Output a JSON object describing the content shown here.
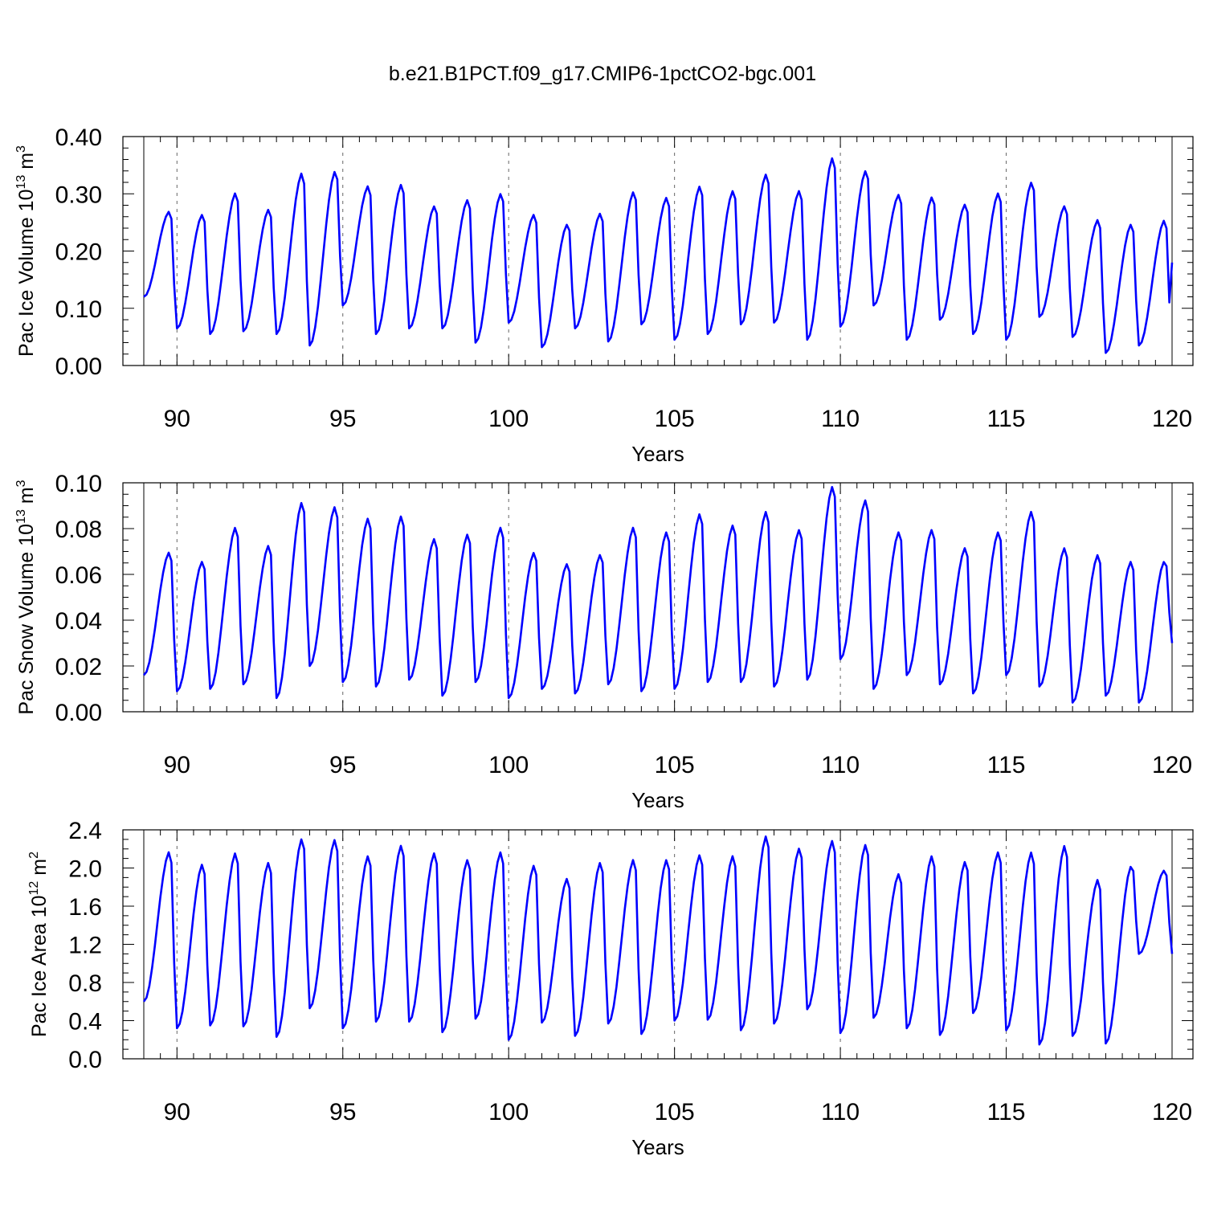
{
  "title": "b.e21.B1PCT.f09_g17.CMIP6-1pctCO2-bgc.001",
  "colors": {
    "series": "#0000ff",
    "axis": "#000000",
    "vline": "#666666"
  },
  "chart_data": [
    {
      "type": "line",
      "name": "pac-ice-volume",
      "ylabel": {
        "text": "Pac Ice Volume 10",
        "sup": "13",
        "unit": " m",
        "unit_sup": "3"
      },
      "xlabel": "Years",
      "xlim": [
        89,
        120
      ],
      "ylim": [
        0.0,
        0.4
      ],
      "xticks": [
        90,
        95,
        100,
        105,
        110,
        115,
        120
      ],
      "yticks": [
        0.0,
        0.1,
        0.2,
        0.3,
        0.4
      ],
      "ytick_labels": [
        "0.00",
        "0.10",
        "0.20",
        "0.30",
        "0.40"
      ],
      "ytick_minor": 0.02,
      "x_minor": 0.5,
      "vlines": [
        90,
        95,
        100,
        105,
        110,
        115
      ],
      "grid": false,
      "start_year": 89,
      "samples_per_year": 12,
      "peak_values": [
        0.27,
        0.265,
        0.303,
        0.274,
        0.338,
        0.341,
        0.315,
        0.318,
        0.28,
        0.291,
        0.302,
        0.265,
        0.248,
        0.267,
        0.305,
        0.295,
        0.315,
        0.307,
        0.336,
        0.307,
        0.365,
        0.342,
        0.3,
        0.296,
        0.283,
        0.303,
        0.322,
        0.28,
        0.256,
        0.248,
        0.255
      ],
      "trough_values": [
        0.12,
        0.065,
        0.055,
        0.06,
        0.055,
        0.035,
        0.105,
        0.055,
        0.065,
        0.065,
        0.04,
        0.075,
        0.032,
        0.065,
        0.042,
        0.072,
        0.045,
        0.055,
        0.072,
        0.075,
        0.045,
        0.068,
        0.105,
        0.045,
        0.08,
        0.055,
        0.045,
        0.085,
        0.05,
        0.022,
        0.035,
        0.025,
        0.18
      ]
    },
    {
      "type": "line",
      "name": "pac-snow-volume",
      "ylabel": {
        "text": "Pac Snow Volume 10",
        "sup": "13",
        "unit": " m",
        "unit_sup": "3"
      },
      "xlabel": "Years",
      "xlim": [
        89,
        120
      ],
      "ylim": [
        0.0,
        0.1
      ],
      "xticks": [
        90,
        95,
        100,
        105,
        110,
        115,
        120
      ],
      "yticks": [
        0.0,
        0.02,
        0.04,
        0.06,
        0.08,
        0.1
      ],
      "ytick_labels": [
        "0.00",
        "0.02",
        "0.04",
        "0.06",
        "0.08",
        "0.10"
      ],
      "ytick_minor": 0.005,
      "x_minor": 0.5,
      "vlines": [
        90,
        95,
        100,
        105,
        110,
        115
      ],
      "grid": false,
      "start_year": 89,
      "samples_per_year": 12,
      "peak_values": [
        0.07,
        0.066,
        0.081,
        0.073,
        0.092,
        0.09,
        0.085,
        0.086,
        0.076,
        0.078,
        0.081,
        0.07,
        0.065,
        0.069,
        0.081,
        0.079,
        0.087,
        0.082,
        0.088,
        0.08,
        0.099,
        0.093,
        0.079,
        0.08,
        0.072,
        0.079,
        0.088,
        0.072,
        0.069,
        0.066,
        0.066
      ],
      "trough_values": [
        0.016,
        0.009,
        0.01,
        0.012,
        0.006,
        0.02,
        0.013,
        0.011,
        0.014,
        0.007,
        0.013,
        0.006,
        0.01,
        0.008,
        0.012,
        0.009,
        0.01,
        0.013,
        0.013,
        0.011,
        0.014,
        0.023,
        0.01,
        0.016,
        0.012,
        0.008,
        0.016,
        0.011,
        0.004,
        0.007,
        0.004,
        0.03
      ]
    },
    {
      "type": "line",
      "name": "pac-ice-area",
      "ylabel": {
        "text": "Pac Ice Area 10",
        "sup": "12",
        "unit": " m",
        "unit_sup": "2"
      },
      "xlabel": "Years",
      "xlim": [
        89,
        120
      ],
      "ylim": [
        0.0,
        2.4
      ],
      "xticks": [
        90,
        95,
        100,
        105,
        110,
        115,
        120
      ],
      "yticks": [
        0.0,
        0.4,
        0.8,
        1.2,
        1.6,
        2.0,
        2.4
      ],
      "ytick_labels": [
        "0.0",
        "0.4",
        "0.8",
        "1.2",
        "1.6",
        "2.0",
        "2.4"
      ],
      "ytick_minor": 0.1,
      "x_minor": 0.5,
      "vlines": [
        90,
        95,
        100,
        105,
        110,
        115
      ],
      "grid": false,
      "start_year": 89,
      "samples_per_year": 12,
      "peak_values": [
        2.18,
        2.05,
        2.17,
        2.07,
        2.32,
        2.31,
        2.14,
        2.25,
        2.17,
        2.1,
        2.18,
        2.04,
        1.9,
        2.07,
        2.1,
        2.1,
        2.15,
        2.14,
        2.35,
        2.22,
        2.3,
        2.26,
        1.95,
        2.14,
        2.08,
        2.18,
        2.18,
        2.25,
        1.89,
        2.03,
        1.98
      ],
      "trough_values": [
        0.6,
        0.32,
        0.35,
        0.34,
        0.23,
        0.53,
        0.32,
        0.39,
        0.39,
        0.28,
        0.42,
        0.2,
        0.38,
        0.24,
        0.37,
        0.26,
        0.4,
        0.41,
        0.3,
        0.37,
        0.52,
        0.27,
        0.43,
        0.32,
        0.25,
        0.48,
        0.3,
        0.15,
        0.24,
        0.16,
        1.1
      ]
    }
  ]
}
